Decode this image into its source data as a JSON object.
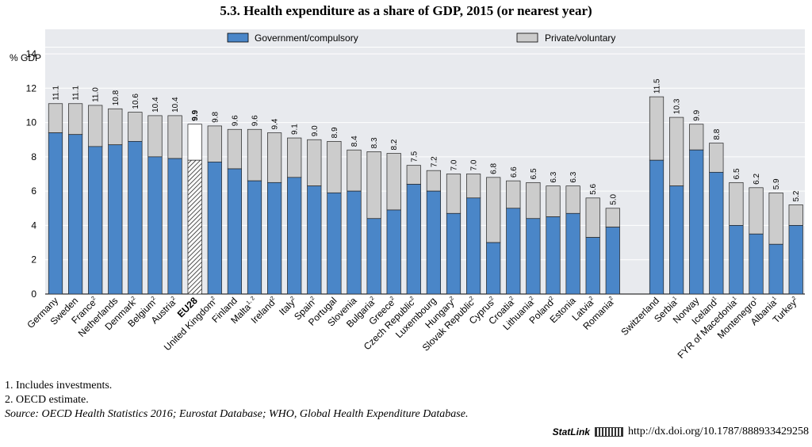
{
  "title": "5.3.  Health expenditure as a share of GDP, 2015 (or nearest year)",
  "notes": [
    "1.  Includes investments.",
    "2.  OECD estimate."
  ],
  "source_label": "Source:",
  "source_text": "OECD Health Statistics 2016; Eurostat Database; WHO, Global Health Expenditure Database.",
  "statlink": {
    "label": "StatLink",
    "url": "http://dx.doi.org/10.1787/888933429258"
  },
  "colors": {
    "government": "#4a86c8",
    "private": "#cccccc",
    "panel": "#e8eaee",
    "grid": "#ffffff"
  },
  "chart_data": {
    "type": "bar",
    "stacked": true,
    "ylabel": "% GDP",
    "ylim": [
      0,
      14
    ],
    "yticks": [
      0,
      2,
      4,
      6,
      8,
      10,
      12,
      14
    ],
    "legend": [
      "Government/compulsory",
      "Private/voluntary"
    ],
    "categories": [
      {
        "name": "Germany",
        "sup": "",
        "gov": 9.4,
        "total": 11.1
      },
      {
        "name": "Sweden",
        "sup": "",
        "gov": 9.3,
        "total": 11.1
      },
      {
        "name": "France",
        "sup": "2",
        "gov": 8.6,
        "total": 11.0
      },
      {
        "name": "Netherlands",
        "sup": "",
        "gov": 8.7,
        "total": 10.8
      },
      {
        "name": "Denmark",
        "sup": "2",
        "gov": 8.9,
        "total": 10.6
      },
      {
        "name": "Belgium",
        "sup": "2",
        "gov": 8.0,
        "total": 10.4
      },
      {
        "name": "Austria",
        "sup": "2",
        "gov": 7.9,
        "total": 10.4
      },
      {
        "name": "EU28",
        "sup": "",
        "gov": 7.8,
        "total": 9.9,
        "highlight": true
      },
      {
        "name": "United Kingdom",
        "sup": "2",
        "gov": 7.7,
        "total": 9.8
      },
      {
        "name": "Finland",
        "sup": "",
        "gov": 7.3,
        "total": 9.6
      },
      {
        "name": "Malta",
        "sup": "1, 2",
        "gov": 6.6,
        "total": 9.6
      },
      {
        "name": "Ireland",
        "sup": "2",
        "gov": 6.5,
        "total": 9.4
      },
      {
        "name": "Italy",
        "sup": "2",
        "gov": 6.8,
        "total": 9.1
      },
      {
        "name": "Spain",
        "sup": "2",
        "gov": 6.3,
        "total": 9.0
      },
      {
        "name": "Portugal",
        "sup": "",
        "gov": 5.9,
        "total": 8.9
      },
      {
        "name": "Slovenia",
        "sup": "",
        "gov": 6.0,
        "total": 8.4
      },
      {
        "name": "Bulgaria",
        "sup": "2",
        "gov": 4.4,
        "total": 8.3
      },
      {
        "name": "Greece",
        "sup": "2",
        "gov": 4.9,
        "total": 8.2
      },
      {
        "name": "Czech Republic",
        "sup": "2",
        "gov": 6.4,
        "total": 7.5
      },
      {
        "name": "Luxembourg",
        "sup": "",
        "gov": 6.0,
        "total": 7.2
      },
      {
        "name": "Hungary",
        "sup": "2",
        "gov": 4.7,
        "total": 7.0
      },
      {
        "name": "Slovak Republic",
        "sup": "2",
        "gov": 5.6,
        "total": 7.0
      },
      {
        "name": "Cyprus",
        "sup": "2",
        "gov": 3.0,
        "total": 6.8
      },
      {
        "name": "Croatia",
        "sup": "2",
        "gov": 5.0,
        "total": 6.6
      },
      {
        "name": "Lithuania",
        "sup": "2",
        "gov": 4.4,
        "total": 6.5
      },
      {
        "name": "Poland",
        "sup": "2",
        "gov": 4.5,
        "total": 6.3
      },
      {
        "name": "Estonia",
        "sup": "",
        "gov": 4.7,
        "total": 6.3
      },
      {
        "name": "Latvia",
        "sup": "2",
        "gov": 3.3,
        "total": 5.6
      },
      {
        "name": "Romania",
        "sup": "2",
        "gov": 3.9,
        "total": 5.0
      },
      {
        "name": "Switzerland",
        "sup": "",
        "gov": 7.8,
        "total": 11.5,
        "gap_before": true
      },
      {
        "name": "Serbia",
        "sup": "1",
        "gov": 6.3,
        "total": 10.3
      },
      {
        "name": "Norway",
        "sup": "",
        "gov": 8.4,
        "total": 9.9
      },
      {
        "name": "Iceland",
        "sup": "1",
        "gov": 7.1,
        "total": 8.8
      },
      {
        "name": "FYR of Macedonia",
        "sup": "1",
        "gov": 4.0,
        "total": 6.5
      },
      {
        "name": "Montenegro",
        "sup": "1",
        "gov": 3.5,
        "total": 6.2
      },
      {
        "name": "Albania",
        "sup": "1",
        "gov": 2.9,
        "total": 5.9
      },
      {
        "name": "Turkey",
        "sup": "2",
        "gov": 4.0,
        "total": 5.2
      }
    ]
  }
}
